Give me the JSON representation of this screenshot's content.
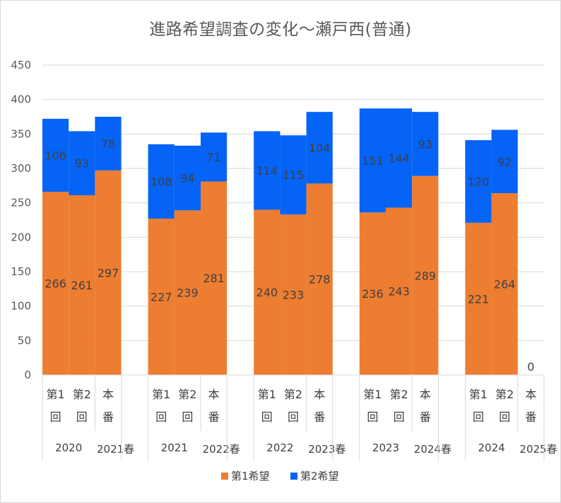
{
  "chart_data": {
    "type": "bar",
    "stacked": true,
    "title": "進路希望調査の変化～瀬戸西(普通)",
    "ylim": [
      0,
      450
    ],
    "yticks": [
      0,
      50,
      100,
      150,
      200,
      250,
      300,
      350,
      400,
      450
    ],
    "grid": true,
    "legend_position": "bottom",
    "groups": [
      {
        "year": "2020",
        "season": "2021春",
        "categories": [
          {
            "top": "第1",
            "bottom": "回"
          },
          {
            "top": "第2",
            "bottom": "回"
          },
          {
            "top": "本",
            "bottom": "番"
          }
        ]
      },
      {
        "year": "2021",
        "season": "2022春",
        "categories": [
          {
            "top": "第1",
            "bottom": "回"
          },
          {
            "top": "第2",
            "bottom": "回"
          },
          {
            "top": "本",
            "bottom": "番"
          }
        ]
      },
      {
        "year": "2022",
        "season": "2023春",
        "categories": [
          {
            "top": "第1",
            "bottom": "回"
          },
          {
            "top": "第2",
            "bottom": "回"
          },
          {
            "top": "本",
            "bottom": "番"
          }
        ]
      },
      {
        "year": "2023",
        "season": "2024春",
        "categories": [
          {
            "top": "第1",
            "bottom": "回"
          },
          {
            "top": "第2",
            "bottom": "回"
          },
          {
            "top": "本",
            "bottom": "番"
          }
        ]
      },
      {
        "year": "2024",
        "season": "2025春",
        "categories": [
          {
            "top": "第1",
            "bottom": "回"
          },
          {
            "top": "第2",
            "bottom": "回"
          },
          {
            "top": "本",
            "bottom": "番"
          }
        ]
      }
    ],
    "series": [
      {
        "name": "第1希望",
        "color": "#ED7D31",
        "values": [
          266,
          261,
          297,
          227,
          239,
          281,
          240,
          233,
          278,
          236,
          243,
          289,
          221,
          264,
          0
        ]
      },
      {
        "name": "第2希望",
        "color": "#0563F5",
        "values": [
          106,
          93,
          78,
          108,
          94,
          71,
          114,
          115,
          104,
          151,
          144,
          93,
          120,
          92,
          null
        ]
      }
    ]
  }
}
